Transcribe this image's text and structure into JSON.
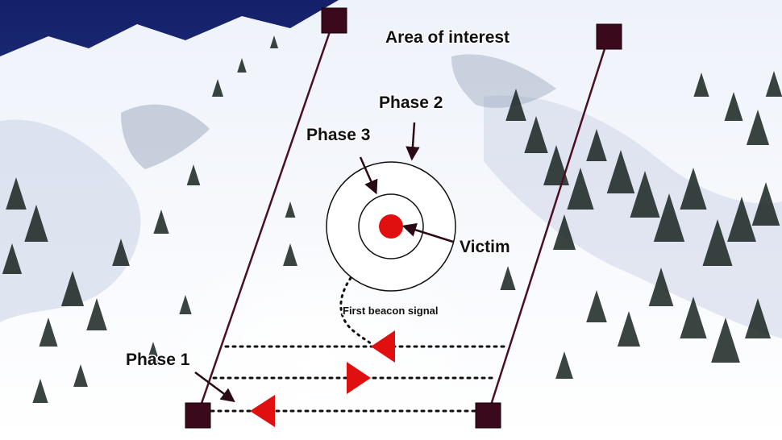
{
  "labels": {
    "area_of_interest": "Area of interest",
    "phase_1": "Phase 1",
    "phase_2": "Phase 2",
    "phase_3": "Phase 3",
    "victim": "Victim",
    "first_beacon_signal": "First beacon signal"
  },
  "colors": {
    "sky": "#1b2a7a",
    "snow": "#f4f7fc",
    "marker_square": "#3a0a1c",
    "line": "#4a0f22",
    "victim_dot": "#e01010",
    "direction_arrow": "#e01010",
    "tree": "#17231f"
  }
}
